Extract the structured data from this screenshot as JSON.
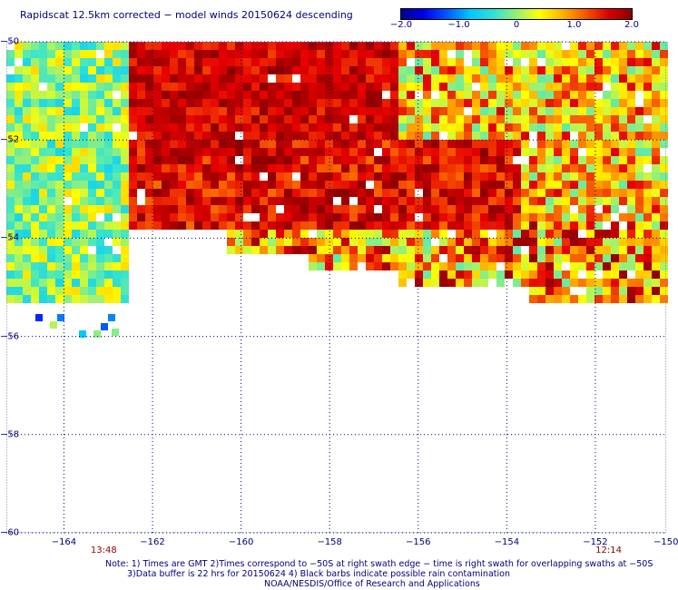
{
  "title": "Rapidscat 12.5km corrected − model winds 20150624 descending",
  "colorbar": {
    "min": -2.0,
    "max": 2.0,
    "tick_labels": [
      "−2.0",
      "−1.0",
      "0",
      "1.0",
      "2.0"
    ],
    "tick_values": [
      -2.0,
      -1.0,
      0.0,
      1.0,
      2.0
    ],
    "colormap": "blue-cyan-green-yellow-red-darkred"
  },
  "map": {
    "lon_range": [
      -165.3,
      -150.4
    ],
    "lat_range": [
      -60,
      -50
    ],
    "lat_ticks": [
      {
        "value": -50,
        "label": "−50"
      },
      {
        "value": -52,
        "label": "−52"
      },
      {
        "value": -54,
        "label": "−54"
      },
      {
        "value": -56,
        "label": "−56"
      },
      {
        "value": -58,
        "label": "−58"
      },
      {
        "value": -60,
        "label": "−60"
      }
    ],
    "lon_ticks": [
      {
        "value": -164,
        "label": "−164"
      },
      {
        "value": -162,
        "label": "−162"
      },
      {
        "value": -160,
        "label": "−160"
      },
      {
        "value": -158,
        "label": "−158"
      },
      {
        "value": -156,
        "label": "−156"
      },
      {
        "value": -154,
        "label": "−154"
      },
      {
        "value": -152,
        "label": "−152"
      },
      {
        "value": -150,
        "label": "−150"
      }
    ],
    "grid": "dotted",
    "swath_times": [
      {
        "lon": -163.1,
        "label": "13:48"
      },
      {
        "lon": -151.7,
        "label": "12:14"
      }
    ]
  },
  "notes": {
    "line1": "Note: 1) Times are GMT 2)Times correspond to −50S at right swath edge − time is right swath for overlapping swaths at −50S",
    "line2": "3)Data buffer is 22 hrs for 20150624 4) Black barbs indicate possible rain contamination",
    "line3": "NOAA/NESDIS/Office of Research and Applications"
  },
  "colors": {
    "text": "#00007a",
    "time_label": "#8b0000",
    "grid": "#00007a"
  }
}
